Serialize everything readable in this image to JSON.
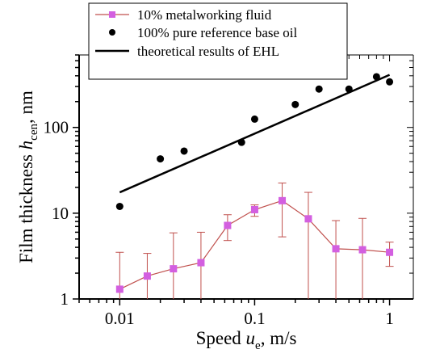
{
  "chart_data": {
    "type": "scatter",
    "xlabel": {
      "main": "Speed ",
      "var": "u",
      "sub": "e",
      "unit": ", m/s"
    },
    "ylabel": {
      "main": "Film thickness ",
      "var": "h",
      "sub": "cen",
      "unit": ", nm"
    },
    "xscale": "log",
    "yscale": "log",
    "xlim": [
      0.005,
      1.5
    ],
    "ylim": [
      1,
      700
    ],
    "xticks": [
      0.01,
      0.1,
      1
    ],
    "xtick_labels": [
      "0.01",
      "0.1",
      "1"
    ],
    "yticks": [
      1,
      10,
      100
    ],
    "ytick_labels": [
      "1",
      "10",
      "100"
    ],
    "grid": false,
    "legend_position": "top-left",
    "series": [
      {
        "name": "10% metalworking fluid",
        "style": "line-markers-errorbars",
        "marker": "square",
        "line_color": "#c0504d",
        "marker_color": "#d35fe0",
        "points": [
          {
            "x": 0.01,
            "y": 1.3,
            "lo": 0.6,
            "hi": 3.5
          },
          {
            "x": 0.016,
            "y": 1.85,
            "lo": 0.45,
            "hi": 3.4
          },
          {
            "x": 0.025,
            "y": 2.25,
            "lo": 0.55,
            "hi": 5.9
          },
          {
            "x": 0.04,
            "y": 2.65,
            "lo": 0.65,
            "hi": 6.0
          },
          {
            "x": 0.063,
            "y": 7.2,
            "lo": 4.8,
            "hi": 9.6
          },
          {
            "x": 0.1,
            "y": 11,
            "lo": 9.2,
            "hi": 12.5
          },
          {
            "x": 0.16,
            "y": 14,
            "lo": 5.3,
            "hi": 22.5
          },
          {
            "x": 0.25,
            "y": 8.6,
            "lo": 0.6,
            "hi": 17.5
          },
          {
            "x": 0.4,
            "y": 3.85,
            "lo": 0.6,
            "hi": 8.2
          },
          {
            "x": 0.63,
            "y": 3.75,
            "lo": 0.6,
            "hi": 8.7
          },
          {
            "x": 1.0,
            "y": 3.5,
            "lo": 2.4,
            "hi": 4.6
          }
        ]
      },
      {
        "name": "100% pure reference base oil",
        "style": "markers",
        "marker": "circle",
        "marker_color": "#000000",
        "x": [
          0.01,
          0.02,
          0.03,
          0.08,
          0.1,
          0.2,
          0.3,
          0.5,
          0.8,
          1.0
        ],
        "y": [
          12,
          43,
          53,
          67,
          125,
          185,
          280,
          280,
          390,
          340
        ]
      },
      {
        "name": "theoretical results of EHL",
        "style": "line",
        "line_color": "#000000",
        "x": [
          0.01,
          1.0
        ],
        "y": [
          17.5,
          410
        ]
      }
    ]
  }
}
